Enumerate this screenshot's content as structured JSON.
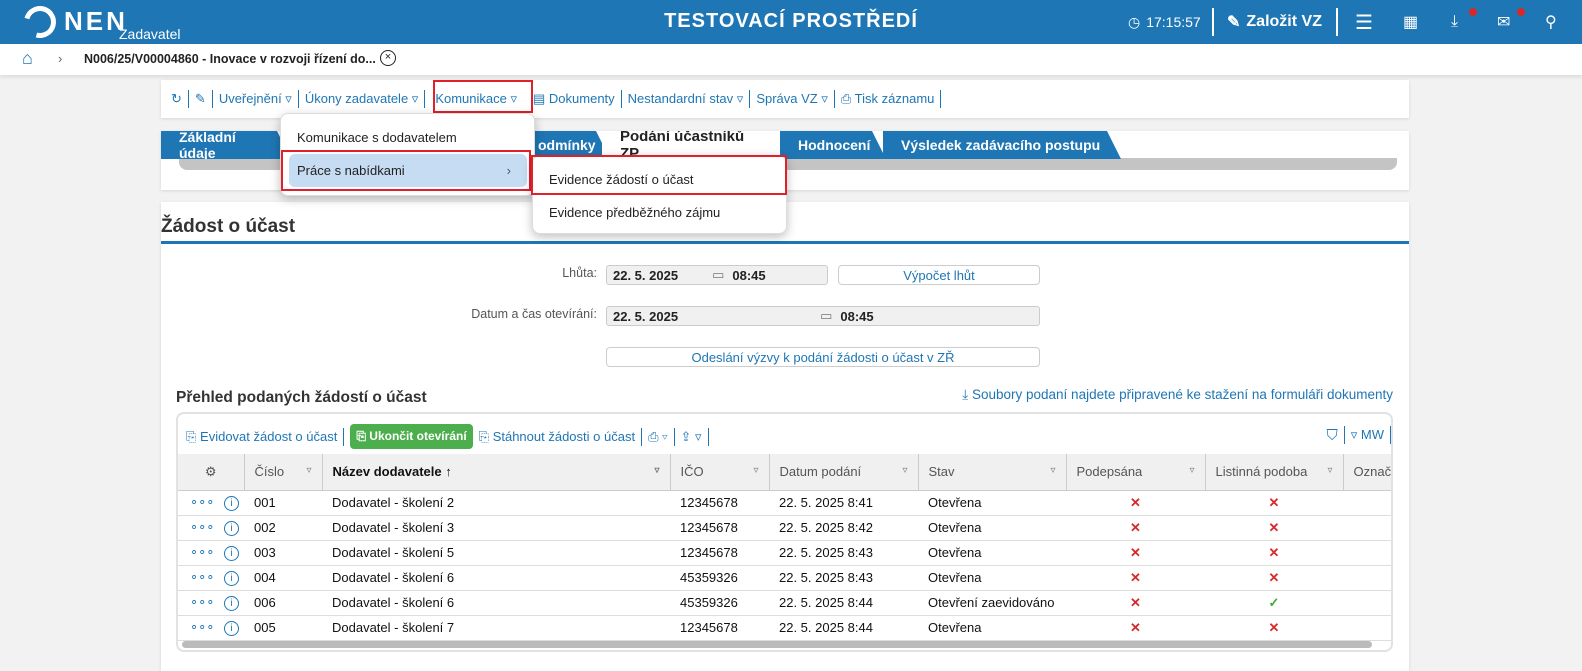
{
  "header": {
    "logo": "NEN",
    "logo_sub": "Zadavatel",
    "environment": "TESTOVACÍ PROSTŘEDÍ",
    "time": "17:15:57",
    "create_label": "Založit VZ"
  },
  "breadcrumb": {
    "current": "N006/25/V00004860 - Inovace v rozvoji řízení do..."
  },
  "toolbar": {
    "items": [
      "Uveřejnění",
      "Úkony zadavatele",
      "Komunikace",
      "Dokumenty",
      "Nestandardní stav",
      "Správa VZ",
      "Tisk záznamu"
    ]
  },
  "tabs": [
    "Základní údaje",
    "odmínky",
    "Podání účastníků ZP",
    "Hodnocení",
    "Výsledek zadávacího postupu"
  ],
  "menu": {
    "items": [
      "Komunikace s dodavatelem",
      "Práce s nabídkami"
    ],
    "submenu": [
      "Evidence žádostí o účast",
      "Evidence předběžného zájmu"
    ]
  },
  "section": {
    "title": "Žádost o účast",
    "lhuta_label": "Lhůta:",
    "lhuta_date": "22. 5. 2025",
    "lhuta_time": "08:45",
    "vypocet_label": "Výpočet lhůt",
    "open_label": "Datum a čas otevírání:",
    "open_date": "22. 5. 2025",
    "open_time": "08:45",
    "send_label": "Odeslání výzvy k podání žádosti o účast v ZŘ"
  },
  "grid": {
    "title": "Přehled podaných žádostí o účast",
    "download_note": "Soubory podaní najdete připravené ke stažení na formuláři dokumenty",
    "actions": {
      "evidovat": "Evidovat žádost o účast",
      "ukoncit": "Ukončit otevírání",
      "stahnout": "Stáhnout žádosti o účast",
      "mw": "MW"
    },
    "columns": [
      "Číslo",
      "Název dodavatele",
      "IČO",
      "Datum podání",
      "Stav",
      "Podepsána",
      "Listinná podoba",
      "Označ"
    ],
    "rows": [
      {
        "cislo": "001",
        "nazev": "Dodavatel - školení 2",
        "ico": "12345678",
        "datum": "22. 5. 2025 8:41",
        "stav": "Otevřena",
        "podepsana": false,
        "listinna": false
      },
      {
        "cislo": "002",
        "nazev": "Dodavatel - školení 3",
        "ico": "12345678",
        "datum": "22. 5. 2025 8:42",
        "stav": "Otevřena",
        "podepsana": false,
        "listinna": false
      },
      {
        "cislo": "003",
        "nazev": "Dodavatel - školení 5",
        "ico": "12345678",
        "datum": "22. 5. 2025 8:43",
        "stav": "Otevřena",
        "podepsana": false,
        "listinna": false
      },
      {
        "cislo": "004",
        "nazev": "Dodavatel - školení 6",
        "ico": "45359326",
        "datum": "22. 5. 2025 8:43",
        "stav": "Otevřena",
        "podepsana": false,
        "listinna": false
      },
      {
        "cislo": "006",
        "nazev": "Dodavatel - školení 6",
        "ico": "45359326",
        "datum": "22. 5. 2025 8:44",
        "stav": "Otevření zaevidováno",
        "podepsana": false,
        "listinna": true
      },
      {
        "cislo": "005",
        "nazev": "Dodavatel - školení 7",
        "ico": "12345678",
        "datum": "22. 5. 2025 8:44",
        "stav": "Otevřena",
        "podepsana": false,
        "listinna": false
      }
    ]
  },
  "colors": {
    "brand": "#1f76b4",
    "highlight": "#e0202a",
    "success": "#4cae4c"
  }
}
